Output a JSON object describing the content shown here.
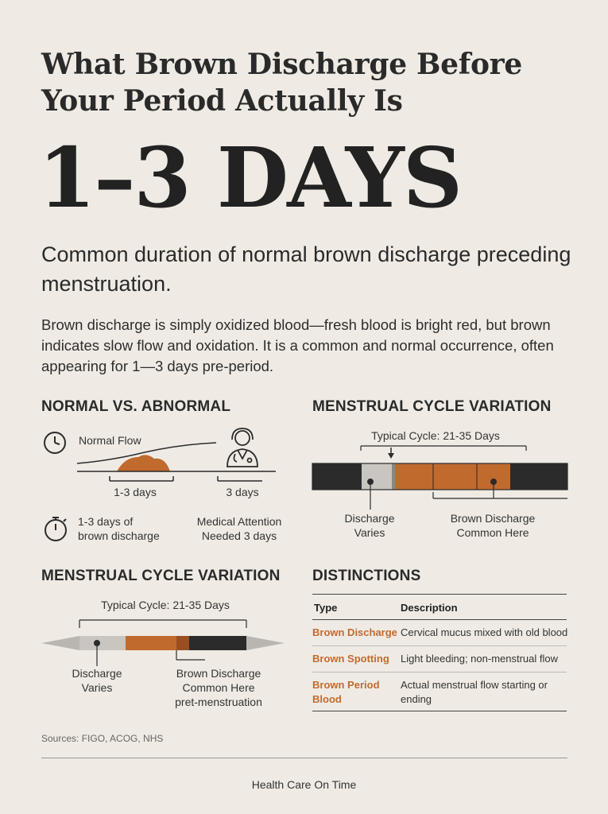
{
  "header": {
    "title": "What Brown Discharge Before Your Period Actually Is",
    "big_stat": "1–3 DAYS",
    "subtitle": "Common duration of normal brown discharge preceding menstruation.",
    "body": "Brown discharge is simply oxidized blood—fresh blood is bright red, but brown indicates slow flow and oxidation. It is a common and normal occurrence, often appearing for 1—3 days pre-period."
  },
  "normal_vs_abnormal": {
    "heading": "NORMAL VS. ABNORMAL",
    "flow_label": "Normal Flow",
    "days_label_1": "1-3 days",
    "days_label_2": "3 days",
    "legend_1_line1": "1-3 days of",
    "legend_1_line2": "brown discharge",
    "legend_2_line1": "Medical Attention",
    "legend_2_line2": "Needed 3 days",
    "icons": [
      "clock-icon",
      "doctor-icon",
      "stopwatch-icon"
    ]
  },
  "cycle_variation_1": {
    "heading": "MENSTRUAL CYCLE VARIATION",
    "range_label": "Typical Cycle: 21-35 Days",
    "label_left_1": "Discharge",
    "label_left_2": "Varies",
    "label_right_1": "Brown Discharge",
    "label_right_2": "Common Here"
  },
  "cycle_variation_2": {
    "heading": "MENSTRUAL CYCLE VARIATION",
    "range_label": "Typical Cycle: 21-35 Days",
    "label_left_1": "Discharge",
    "label_left_2": "Varies",
    "label_right_1": "Brown Discharge",
    "label_right_2": "Common Here",
    "label_right_3": "pret-menstruation"
  },
  "distinctions": {
    "heading": "DISTINCTIONS",
    "col_type": "Type",
    "col_desc": "Description",
    "rows": [
      {
        "type": "Brown Discharge",
        "desc": "Cervical mucus mixed with old blood"
      },
      {
        "type": "Brown Spotting",
        "desc": "Light bleeding; non-menstrual flow"
      },
      {
        "type_1": "Brown Period",
        "type_2": "Blood",
        "desc_1": "Actual menstrual flow starting or",
        "desc_2": "ending"
      }
    ]
  },
  "colors": {
    "background": "#efebe4",
    "accent": "#c16a2e",
    "dark": "#2b2b2b",
    "gray": "#c9c6c1"
  },
  "footer": {
    "sources": "Sources: FIGO, ACOG, NHS",
    "brand": "Health Care On Time"
  }
}
